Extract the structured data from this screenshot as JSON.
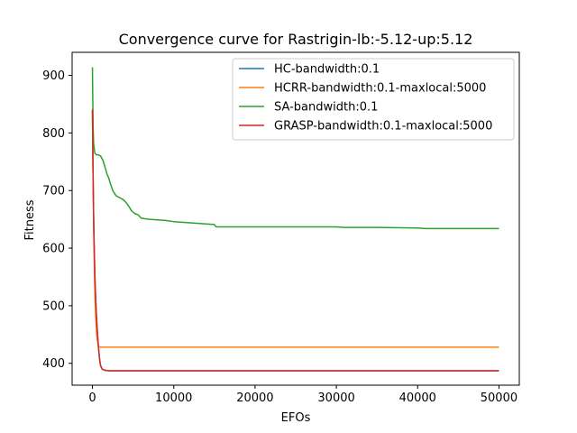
{
  "chart_data": {
    "type": "line",
    "title": "Convergence curve for Rastrigin-lb:-5.12-up:5.12",
    "xlabel": "EFOs",
    "ylabel": "Fitness",
    "xlim": [
      -2500,
      52500
    ],
    "ylim": [
      362,
      940
    ],
    "xticks": [
      0,
      10000,
      20000,
      30000,
      40000,
      50000
    ],
    "yticks": [
      400,
      500,
      600,
      700,
      800,
      900
    ],
    "legend": "top-right",
    "grid": false,
    "series": [
      {
        "name": "HC-bandwidth:0.1",
        "color": "#1f77b4",
        "x": [
          0,
          50,
          100,
          150,
          200,
          300,
          400,
          500,
          600,
          700,
          800,
          900,
          1000,
          1200,
          1500,
          2000,
          5000,
          10000,
          20000,
          30000,
          40000,
          50000
        ],
        "y": [
          840,
          760,
          700,
          650,
          610,
          550,
          510,
          480,
          455,
          435,
          418,
          405,
          396,
          390,
          388,
          387,
          387,
          387,
          387,
          387,
          387,
          387
        ]
      },
      {
        "name": "HCRR-bandwidth:0.1-maxlocal:5000",
        "color": "#ff7f0e",
        "x": [
          0,
          50,
          100,
          150,
          200,
          300,
          400,
          500,
          600,
          700,
          800,
          1000,
          1500,
          5000,
          10000,
          20000,
          30000,
          40000,
          50000
        ],
        "y": [
          842,
          760,
          700,
          640,
          590,
          520,
          480,
          455,
          440,
          432,
          429,
          428,
          428,
          428,
          428,
          428,
          428,
          428,
          428
        ]
      },
      {
        "name": "SA-bandwidth:0.1",
        "color": "#2ca02c",
        "x": [
          0,
          30,
          80,
          150,
          300,
          500,
          700,
          1000,
          1300,
          1600,
          1800,
          2000,
          2200,
          2500,
          2800,
          3000,
          3300,
          3800,
          4200,
          4500,
          4800,
          5200,
          5600,
          6000,
          7000,
          8000,
          9000,
          10000,
          12000,
          14000,
          15000,
          15200,
          16000,
          18000,
          20000,
          25000,
          30000,
          31000,
          35000,
          40000,
          41000,
          45000,
          50000
        ],
        "y": [
          914,
          870,
          810,
          780,
          765,
          762,
          762,
          760,
          752,
          738,
          728,
          722,
          712,
          700,
          693,
          690,
          688,
          684,
          678,
          672,
          665,
          660,
          658,
          652,
          650,
          649,
          648,
          646,
          644,
          642,
          641,
          637,
          637,
          637,
          637,
          637,
          637,
          636,
          636,
          635,
          634,
          634,
          634
        ]
      },
      {
        "name": "GRASP-bandwidth:0.1-maxlocal:5000",
        "color": "#d62728",
        "x": [
          0,
          50,
          100,
          150,
          200,
          300,
          400,
          500,
          600,
          700,
          800,
          900,
          1000,
          1200,
          1500,
          2000,
          5000,
          10000,
          20000,
          30000,
          40000,
          50000
        ],
        "y": [
          840,
          760,
          700,
          650,
          610,
          550,
          510,
          480,
          455,
          435,
          418,
          405,
          396,
          390,
          388,
          387,
          387,
          387,
          387,
          387,
          387,
          387
        ]
      }
    ]
  }
}
